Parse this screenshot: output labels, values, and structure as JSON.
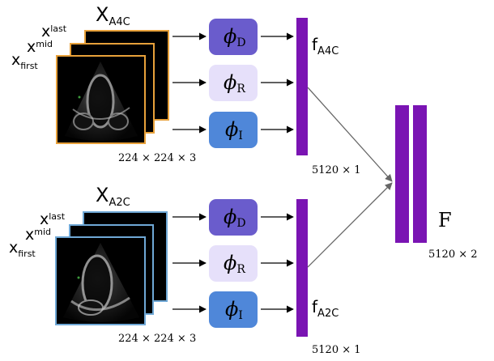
{
  "top_block": {
    "title_main": "X",
    "title_sub": "A4C",
    "frame_labels": [
      {
        "main": "x",
        "sub": "last"
      },
      {
        "main": "x",
        "sub": "mid"
      },
      {
        "main": "x",
        "sub": "first"
      }
    ],
    "dims": "224 × 224 × 3",
    "frame_color": "#e8a13a",
    "feature_label_main": "f",
    "feature_label_sub": "A4C",
    "feature_dims": "5120 × 1"
  },
  "bottom_block": {
    "title_main": "X",
    "title_sub": "A2C",
    "frame_labels": [
      {
        "main": "x",
        "sub": "last"
      },
      {
        "main": "x",
        "sub": "mid"
      },
      {
        "main": "x",
        "sub": "first"
      }
    ],
    "dims": "224 × 224 × 3",
    "frame_color": "#6fa8d6",
    "feature_label_main": "f",
    "feature_label_sub": "A2C",
    "feature_dims": "5120 × 1"
  },
  "encoders": [
    {
      "symbol": "ϕ",
      "sub": "D",
      "color": "#6a5ccc"
    },
    {
      "symbol": "ϕ",
      "sub": "R",
      "color": "#e6e0fa"
    },
    {
      "symbol": "ϕ",
      "sub": "I",
      "color": "#4f87d9"
    }
  ],
  "fused": {
    "label": "F",
    "dims": "5120 × 2",
    "bar_color": "#7a14b3"
  }
}
